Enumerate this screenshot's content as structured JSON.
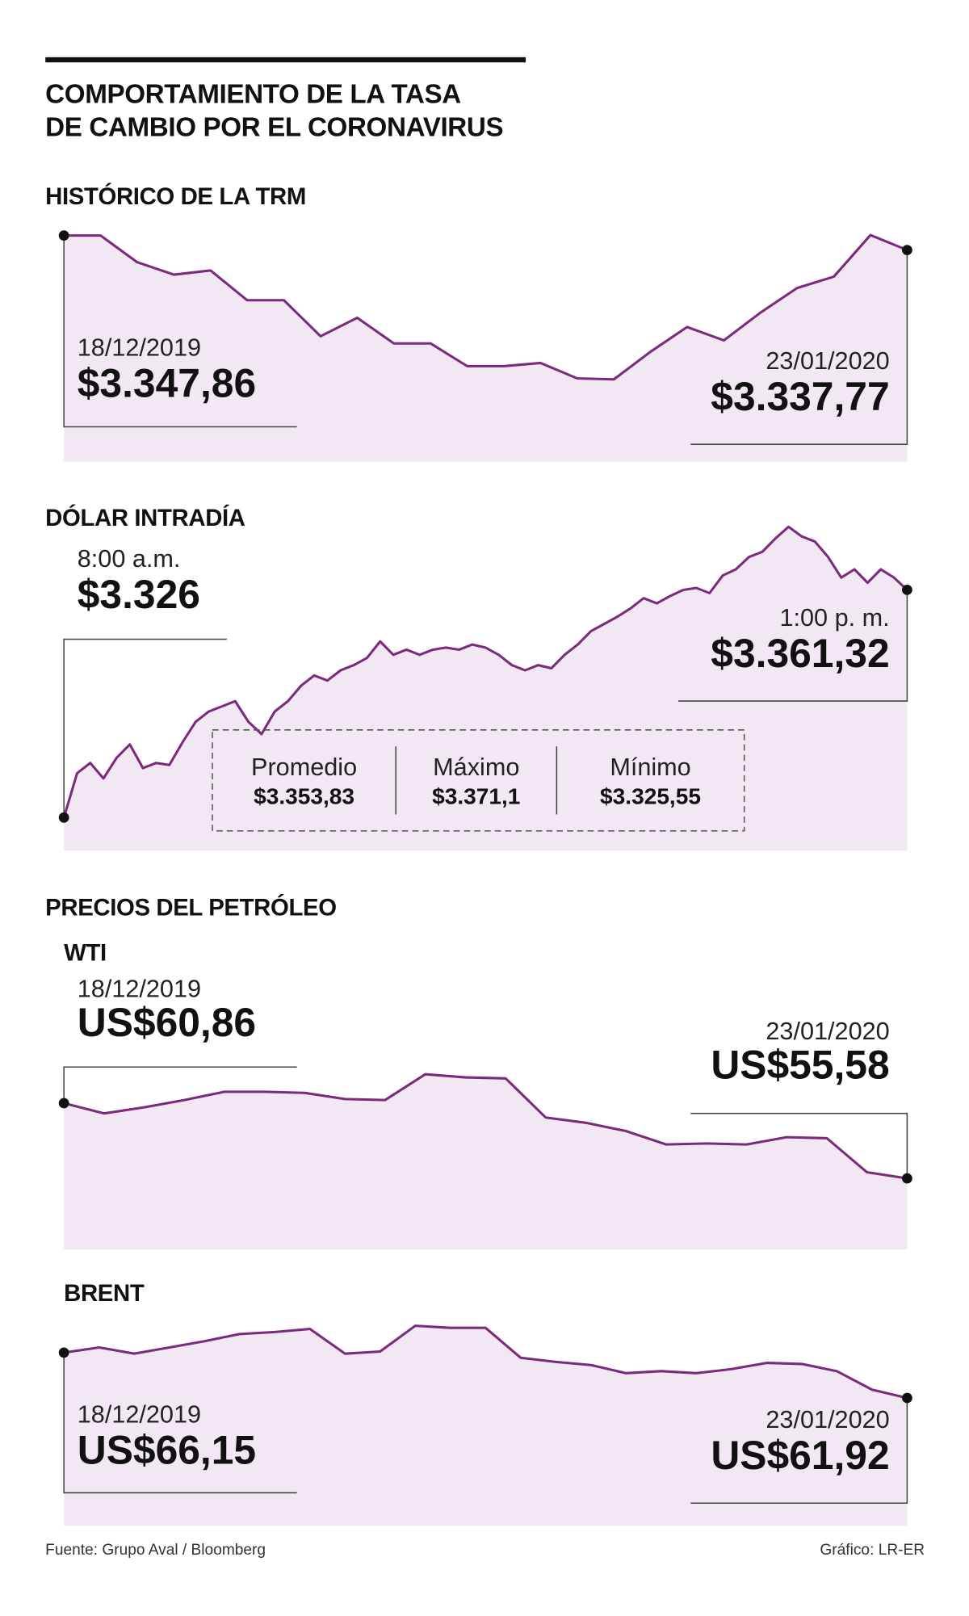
{
  "title_lines": [
    "COMPORTAMIENTO DE LA TASA",
    "DE CAMBIO POR EL CORONAVIRUS"
  ],
  "oil_heading": "PRECIOS DEL PETRÓLEO",
  "source": "Fuente: Grupo Aval / Bloomberg",
  "credit": "Gráfico: LR-ER",
  "chart_data": [
    {
      "type": "line",
      "title": "HISTÓRICO DE LA TRM",
      "color": "#7b2a7e",
      "fill": "#f1e8f3",
      "start": {
        "label": "18/12/2019",
        "value_label": "$3.347,86"
      },
      "end": {
        "label": "23/01/2020",
        "value_label": "$3.337,77"
      },
      "values": [
        3347.86,
        3347.86,
        3329.3,
        3320.7,
        3323.6,
        3302.9,
        3302.9,
        3277.9,
        3290.7,
        3272.9,
        3272.9,
        3257.1,
        3257.1,
        3259.3,
        3248.6,
        3247.9,
        3267.1,
        3284.3,
        3275.0,
        3294.3,
        3311.4,
        3319.3,
        3348.2,
        3337.77
      ]
    },
    {
      "type": "line",
      "title": "DÓLAR INTRADÍA",
      "color": "#7b2a7e",
      "fill": "#f1e8f3",
      "start": {
        "label": "8:00 a.m.",
        "value_label": "$3.326"
      },
      "end": {
        "label": "1:00 p. m.",
        "value_label": "$3.361,32"
      },
      "stats": [
        {
          "label": "Promedio",
          "value_label": "$3.353,83"
        },
        {
          "label": "Máximo",
          "value_label": "$3.371,1"
        },
        {
          "label": "Mínimo",
          "value_label": "$3.325,55"
        }
      ],
      "values": [
        3326,
        3332.87,
        3334.47,
        3332.07,
        3335.27,
        3337.34,
        3333.67,
        3334.47,
        3334.15,
        3337.66,
        3340.86,
        3342.45,
        3343.25,
        3344.05,
        3340.86,
        3338.94,
        3342.45,
        3344.05,
        3346.45,
        3348.04,
        3347.25,
        3348.84,
        3349.64,
        3350.76,
        3353.32,
        3351.24,
        3352.04,
        3351.24,
        3352.04,
        3352.36,
        3352.04,
        3352.84,
        3352.36,
        3351.24,
        3349.64,
        3348.84,
        3349.64,
        3349.16,
        3351.24,
        3352.84,
        3354.91,
        3356.03,
        3357.15,
        3358.43,
        3360.03,
        3359.23,
        3360.35,
        3361.3,
        3361.62,
        3360.82,
        3363.54,
        3364.5,
        3366.42,
        3367.21,
        3369.29,
        3371.1,
        3369.61,
        3368.81,
        3366.42,
        3363.22,
        3364.5,
        3362.42,
        3364.5,
        3363.22,
        3361.32
      ]
    },
    {
      "type": "line",
      "title": "WTI",
      "color": "#7b2a7e",
      "fill": "#f1e8f3",
      "start": {
        "label": "18/12/2019",
        "value_label": "US$60,86"
      },
      "end": {
        "label": "23/01/2020",
        "value_label": "US$55,58"
      },
      "values": [
        60.86,
        60.14,
        60.57,
        61.08,
        61.66,
        61.66,
        61.58,
        61.15,
        61.08,
        62.89,
        62.67,
        62.6,
        59.85,
        59.48,
        58.9,
        57.96,
        58.03,
        57.96,
        58.47,
        58.4,
        56.01,
        55.58
      ]
    },
    {
      "type": "line",
      "title": "BRENT",
      "color": "#7b2a7e",
      "fill": "#f1e8f3",
      "start": {
        "label": "18/12/2019",
        "value_label": "US$66,15"
      },
      "end": {
        "label": "23/01/2020",
        "value_label": "US$61,92"
      },
      "values": [
        66.15,
        66.63,
        66.05,
        66.63,
        67.21,
        67.88,
        68.07,
        68.36,
        66.05,
        66.25,
        68.65,
        68.46,
        68.46,
        65.67,
        65.28,
        64.99,
        64.23,
        64.42,
        64.23,
        64.61,
        65.19,
        65.09,
        64.42,
        62.69,
        61.92
      ]
    }
  ]
}
